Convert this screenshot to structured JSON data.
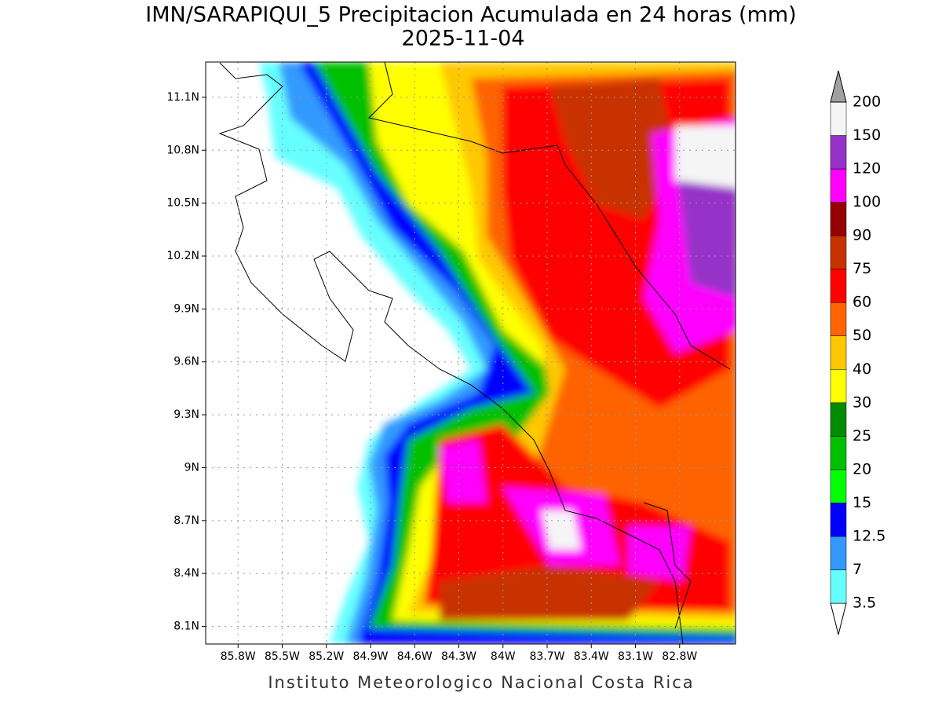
{
  "title": "IMN/SARAPIQUI_5 Precipitacion Acumulada en 24 horas (mm)",
  "date": "2025-11-04",
  "footer": "Instituto Meteorologico Nacional Costa Rica",
  "map": {
    "lonlim": [
      -86.02,
      -82.42
    ],
    "latlim": [
      8.0,
      11.3
    ],
    "lat_ticks": [
      {
        "value": 8.1,
        "label": "8.1N"
      },
      {
        "value": 8.4,
        "label": "8.4N"
      },
      {
        "value": 8.7,
        "label": "8.7N"
      },
      {
        "value": 9,
        "label": "9N"
      },
      {
        "value": 9.3,
        "label": "9.3N"
      },
      {
        "value": 9.6,
        "label": "9.6N"
      },
      {
        "value": 9.9,
        "label": "9.9N"
      },
      {
        "value": 10.2,
        "label": "10.2N"
      },
      {
        "value": 10.5,
        "label": "10.5N"
      },
      {
        "value": 10.8,
        "label": "10.8N"
      },
      {
        "value": 11.1,
        "label": "11.1N"
      }
    ],
    "lon_ticks": [
      {
        "value": -85.8,
        "label": "85.8W"
      },
      {
        "value": -85.5,
        "label": "85.5W"
      },
      {
        "value": -85.2,
        "label": "85.2W"
      },
      {
        "value": -84.9,
        "label": "84.9W"
      },
      {
        "value": -84.6,
        "label": "84.6W"
      },
      {
        "value": -84.3,
        "label": "84.3W"
      },
      {
        "value": -84,
        "label": "84W"
      },
      {
        "value": -83.7,
        "label": "83.7W"
      },
      {
        "value": -83.4,
        "label": "83.4W"
      },
      {
        "value": -83.1,
        "label": "83.1W"
      },
      {
        "value": -82.8,
        "label": "82.8W"
      }
    ],
    "grid": true
  },
  "colorbar": {
    "levels": [
      3.5,
      7,
      12.5,
      15,
      20,
      25,
      30,
      40,
      50,
      60,
      75,
      90,
      100,
      120,
      150,
      200
    ],
    "colors": [
      "#ffffff",
      "#66ffff",
      "#3399ff",
      "#0000ff",
      "#00ff00",
      "#00c000",
      "#008c00",
      "#ffff00",
      "#ffc800",
      "#ff6400",
      "#ff0000",
      "#c83200",
      "#960000",
      "#ff00ff",
      "#9632c8",
      "#f5f5f5",
      "#a0a0a0"
    ]
  }
}
